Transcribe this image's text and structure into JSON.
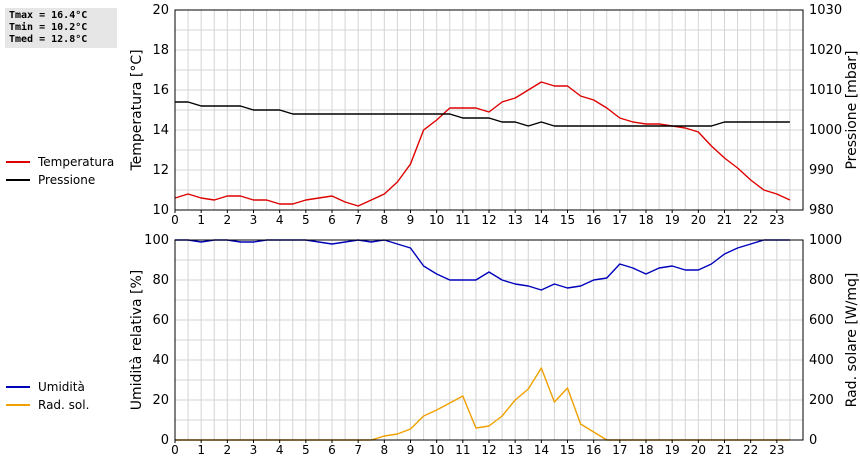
{
  "stats": {
    "tmax": "Tmax = 16.4°C",
    "tmin": "Tmin = 10.2°C",
    "tmed": "Tmed = 12.8°C"
  },
  "legend_top": [
    {
      "label": "Temperatura",
      "color": "#dd0000"
    },
    {
      "label": "Pressione",
      "color": "#000000"
    }
  ],
  "legend_bottom": [
    {
      "label": "Umidità",
      "color": "#0000bb"
    },
    {
      "label": "Rad. sol.",
      "color": "#f0a000"
    }
  ],
  "chart_data": [
    {
      "type": "line",
      "ylabel": "Temperatura [°C]",
      "y2label": "Pressione [mbar]",
      "xlim": [
        0,
        24
      ],
      "ylim": [
        10,
        20
      ],
      "y2lim": [
        980,
        1030
      ],
      "x_ticks": [
        "0",
        "1",
        "2",
        "3",
        "4",
        "5",
        "6",
        "7",
        "8",
        "9",
        "10",
        "11",
        "12",
        "13",
        "14",
        "15",
        "16",
        "17",
        "18",
        "19",
        "20",
        "21",
        "22",
        "23"
      ],
      "y_ticks": [
        "10",
        "12",
        "14",
        "16",
        "18",
        "20"
      ],
      "y2_ticks": [
        "980",
        "990",
        "1000",
        "1010",
        "1020",
        "1030"
      ],
      "grid": true,
      "series": [
        {
          "name": "Temperatura",
          "axis": "left",
          "color": "#dd0000",
          "x": [
            0,
            0.5,
            1,
            1.5,
            2,
            2.5,
            3,
            3.5,
            4,
            4.5,
            5,
            5.5,
            6,
            6.5,
            7,
            7.5,
            8,
            8.5,
            9,
            9.5,
            10,
            10.5,
            11,
            11.5,
            12,
            12.5,
            13,
            13.5,
            14,
            14.5,
            15,
            15.5,
            16,
            16.5,
            17,
            17.5,
            18,
            18.5,
            19,
            19.5,
            20,
            20.5,
            21,
            21.5,
            22,
            22.5,
            23,
            23.5
          ],
          "y": [
            10.6,
            10.8,
            10.6,
            10.5,
            10.7,
            10.7,
            10.5,
            10.5,
            10.3,
            10.3,
            10.5,
            10.6,
            10.7,
            10.4,
            10.2,
            10.5,
            10.8,
            11.4,
            12.3,
            14.0,
            14.5,
            15.1,
            15.1,
            15.1,
            14.9,
            15.4,
            15.6,
            16.0,
            16.4,
            16.2,
            16.2,
            15.7,
            15.5,
            15.1,
            14.6,
            14.4,
            14.3,
            14.3,
            14.2,
            14.1,
            13.9,
            13.2,
            12.6,
            12.1,
            11.5,
            11.0,
            10.8,
            10.5
          ]
        },
        {
          "name": "Pressione",
          "axis": "right",
          "color": "#000000",
          "x": [
            0,
            0.5,
            1,
            1.5,
            2,
            2.5,
            3,
            3.5,
            4,
            4.5,
            5,
            5.5,
            6,
            6.5,
            7,
            7.5,
            8,
            8.5,
            9,
            9.5,
            10,
            10.5,
            11,
            11.5,
            12,
            12.5,
            13,
            13.5,
            14,
            14.5,
            15,
            15.5,
            16,
            16.5,
            17,
            17.5,
            18,
            18.5,
            19,
            19.5,
            20,
            20.5,
            21,
            21.5,
            22,
            22.5,
            23,
            23.5
          ],
          "y": [
            1007,
            1007,
            1006,
            1006,
            1006,
            1006,
            1005,
            1005,
            1005,
            1004,
            1004,
            1004,
            1004,
            1004,
            1004,
            1004,
            1004,
            1004,
            1004,
            1004,
            1004,
            1004,
            1003,
            1003,
            1003,
            1002,
            1002,
            1001,
            1002,
            1001,
            1001,
            1001,
            1001,
            1001,
            1001,
            1001,
            1001,
            1001,
            1001,
            1001,
            1001,
            1001,
            1002,
            1002,
            1002,
            1002,
            1002,
            1002
          ]
        }
      ]
    },
    {
      "type": "line",
      "ylabel": "Umidità relativa [%]",
      "y2label": "Rad. solare [W/mq]",
      "xlim": [
        0,
        24
      ],
      "ylim": [
        0,
        100
      ],
      "y2lim": [
        0,
        1000
      ],
      "x_ticks": [
        "0",
        "1",
        "2",
        "3",
        "4",
        "5",
        "6",
        "7",
        "8",
        "9",
        "10",
        "11",
        "12",
        "13",
        "14",
        "15",
        "16",
        "17",
        "18",
        "19",
        "20",
        "21",
        "22",
        "23"
      ],
      "y_ticks": [
        "0",
        "20",
        "40",
        "60",
        "80",
        "100"
      ],
      "y2_ticks": [
        "0",
        "200",
        "400",
        "600",
        "800",
        "1000"
      ],
      "grid": true,
      "series": [
        {
          "name": "Umidità",
          "axis": "left",
          "color": "#0000bb",
          "x": [
            0,
            0.5,
            1,
            1.5,
            2,
            2.5,
            3,
            3.5,
            4,
            4.5,
            5,
            5.5,
            6,
            6.5,
            7,
            7.5,
            8,
            8.5,
            9,
            9.5,
            10,
            10.5,
            11,
            11.5,
            12,
            12.5,
            13,
            13.5,
            14,
            14.5,
            15,
            15.5,
            16,
            16.5,
            17,
            17.5,
            18,
            18.5,
            19,
            19.5,
            20,
            20.5,
            21,
            21.5,
            22,
            22.5,
            23,
            23.5
          ],
          "y": [
            100,
            100,
            99,
            100,
            100,
            99,
            99,
            100,
            100,
            100,
            100,
            99,
            98,
            99,
            100,
            99,
            100,
            98,
            96,
            87,
            83,
            80,
            80,
            80,
            84,
            80,
            78,
            77,
            75,
            78,
            76,
            77,
            80,
            81,
            88,
            86,
            83,
            86,
            87,
            85,
            85,
            88,
            93,
            96,
            98,
            100,
            100,
            100
          ]
        },
        {
          "name": "Rad. sol.",
          "axis": "right",
          "color": "#f0a000",
          "x": [
            0,
            0.5,
            1,
            1.5,
            2,
            2.5,
            3,
            3.5,
            4,
            4.5,
            5,
            5.5,
            6,
            6.5,
            7,
            7.5,
            8,
            8.5,
            9,
            9.5,
            10,
            10.5,
            11,
            11.5,
            12,
            12.5,
            13,
            13.5,
            14,
            14.5,
            15,
            15.5,
            16,
            16.5,
            17,
            17.5,
            18,
            18.5,
            19,
            19.5,
            20,
            20.5,
            21,
            21.5,
            22,
            22.5,
            23,
            23.5
          ],
          "y": [
            0,
            0,
            0,
            0,
            0,
            0,
            0,
            0,
            0,
            0,
            0,
            0,
            0,
            0,
            0,
            0,
            20,
            30,
            55,
            120,
            150,
            185,
            220,
            60,
            70,
            120,
            200,
            255,
            360,
            190,
            260,
            80,
            40,
            0,
            0,
            0,
            0,
            0,
            0,
            0,
            0,
            0,
            0,
            0,
            0,
            0,
            0,
            0
          ]
        }
      ]
    }
  ]
}
